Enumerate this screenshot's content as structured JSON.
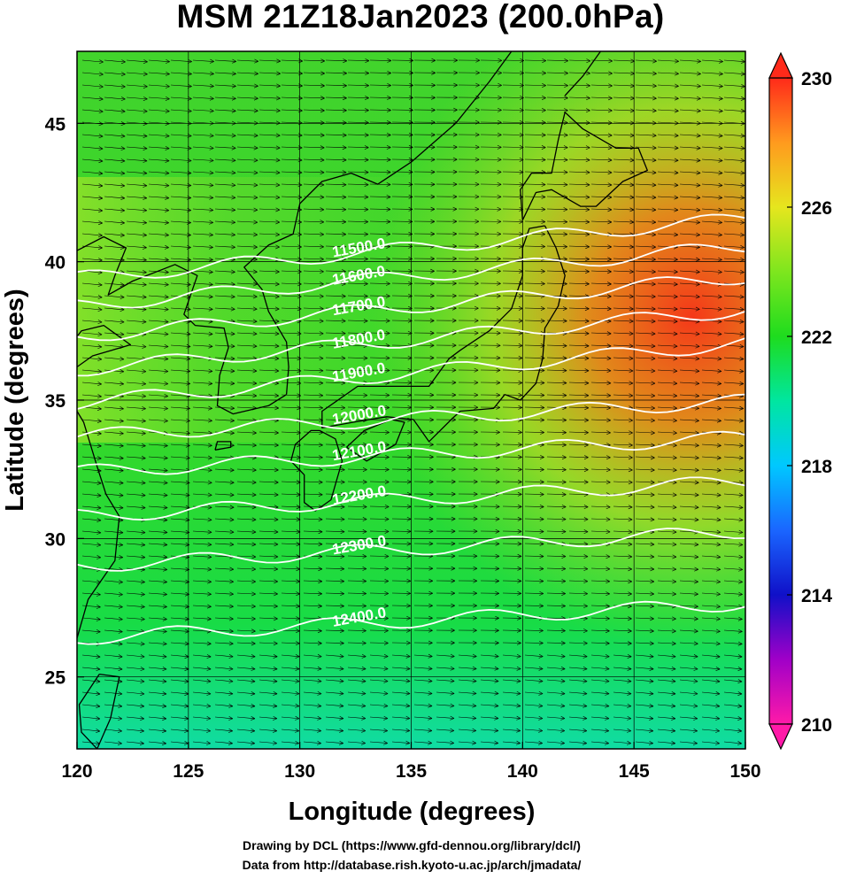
{
  "title": "MSM 21Z18Jan2023 (200.0hPa)",
  "xlabel": "Longitude (degrees)",
  "ylabel": "Latitude  (degrees)",
  "credits": {
    "line1": "Drawing by DCL (https://www.gfd-dennou.org/library/dcl/)",
    "line2": "Data from http://database.rish.kyoto-u.ac.jp/arch/jmadata/"
  },
  "map": {
    "lon_range": [
      120,
      150
    ],
    "lat_range": [
      22.4,
      47.6
    ],
    "lon_ticks": [
      "120",
      "125",
      "130",
      "135",
      "140",
      "145",
      "150"
    ],
    "lat_ticks": [
      "25",
      "30",
      "35",
      "40",
      "45"
    ],
    "grid": true
  },
  "colorbar": {
    "range": [
      210,
      230
    ],
    "ticks": [
      "210",
      "214",
      "218",
      "222",
      "226",
      "230"
    ],
    "extend": "both",
    "colors": [
      "#ff1aa8",
      "#a000c8",
      "#1010c8",
      "#1a66ff",
      "#00c8ff",
      "#00e6a0",
      "#1edc1e",
      "#7ee61e",
      "#e6e61e",
      "#ff9a1e",
      "#ff2a1a"
    ]
  },
  "contours": {
    "variable": "geopotential height",
    "color": "#ffffff",
    "levels": [
      {
        "label": "11500.0",
        "lat": 39.4
      },
      {
        "label": "11600.0",
        "lat": 38.4
      },
      {
        "label": "11700.0",
        "lat": 37.3
      },
      {
        "label": "11800.0",
        "lat": 36.1
      },
      {
        "label": "11900.0",
        "lat": 34.9
      },
      {
        "label": "12000.0",
        "lat": 33.7
      },
      {
        "label": "12100.0",
        "lat": 32.4
      },
      {
        "label": "12200.0",
        "lat": 30.8
      },
      {
        "label": "12300.0",
        "lat": 29.0
      },
      {
        "label": "12400.0",
        "lat": 26.4
      }
    ]
  },
  "vectors": {
    "direction": "westerly",
    "color": "#000000"
  }
}
